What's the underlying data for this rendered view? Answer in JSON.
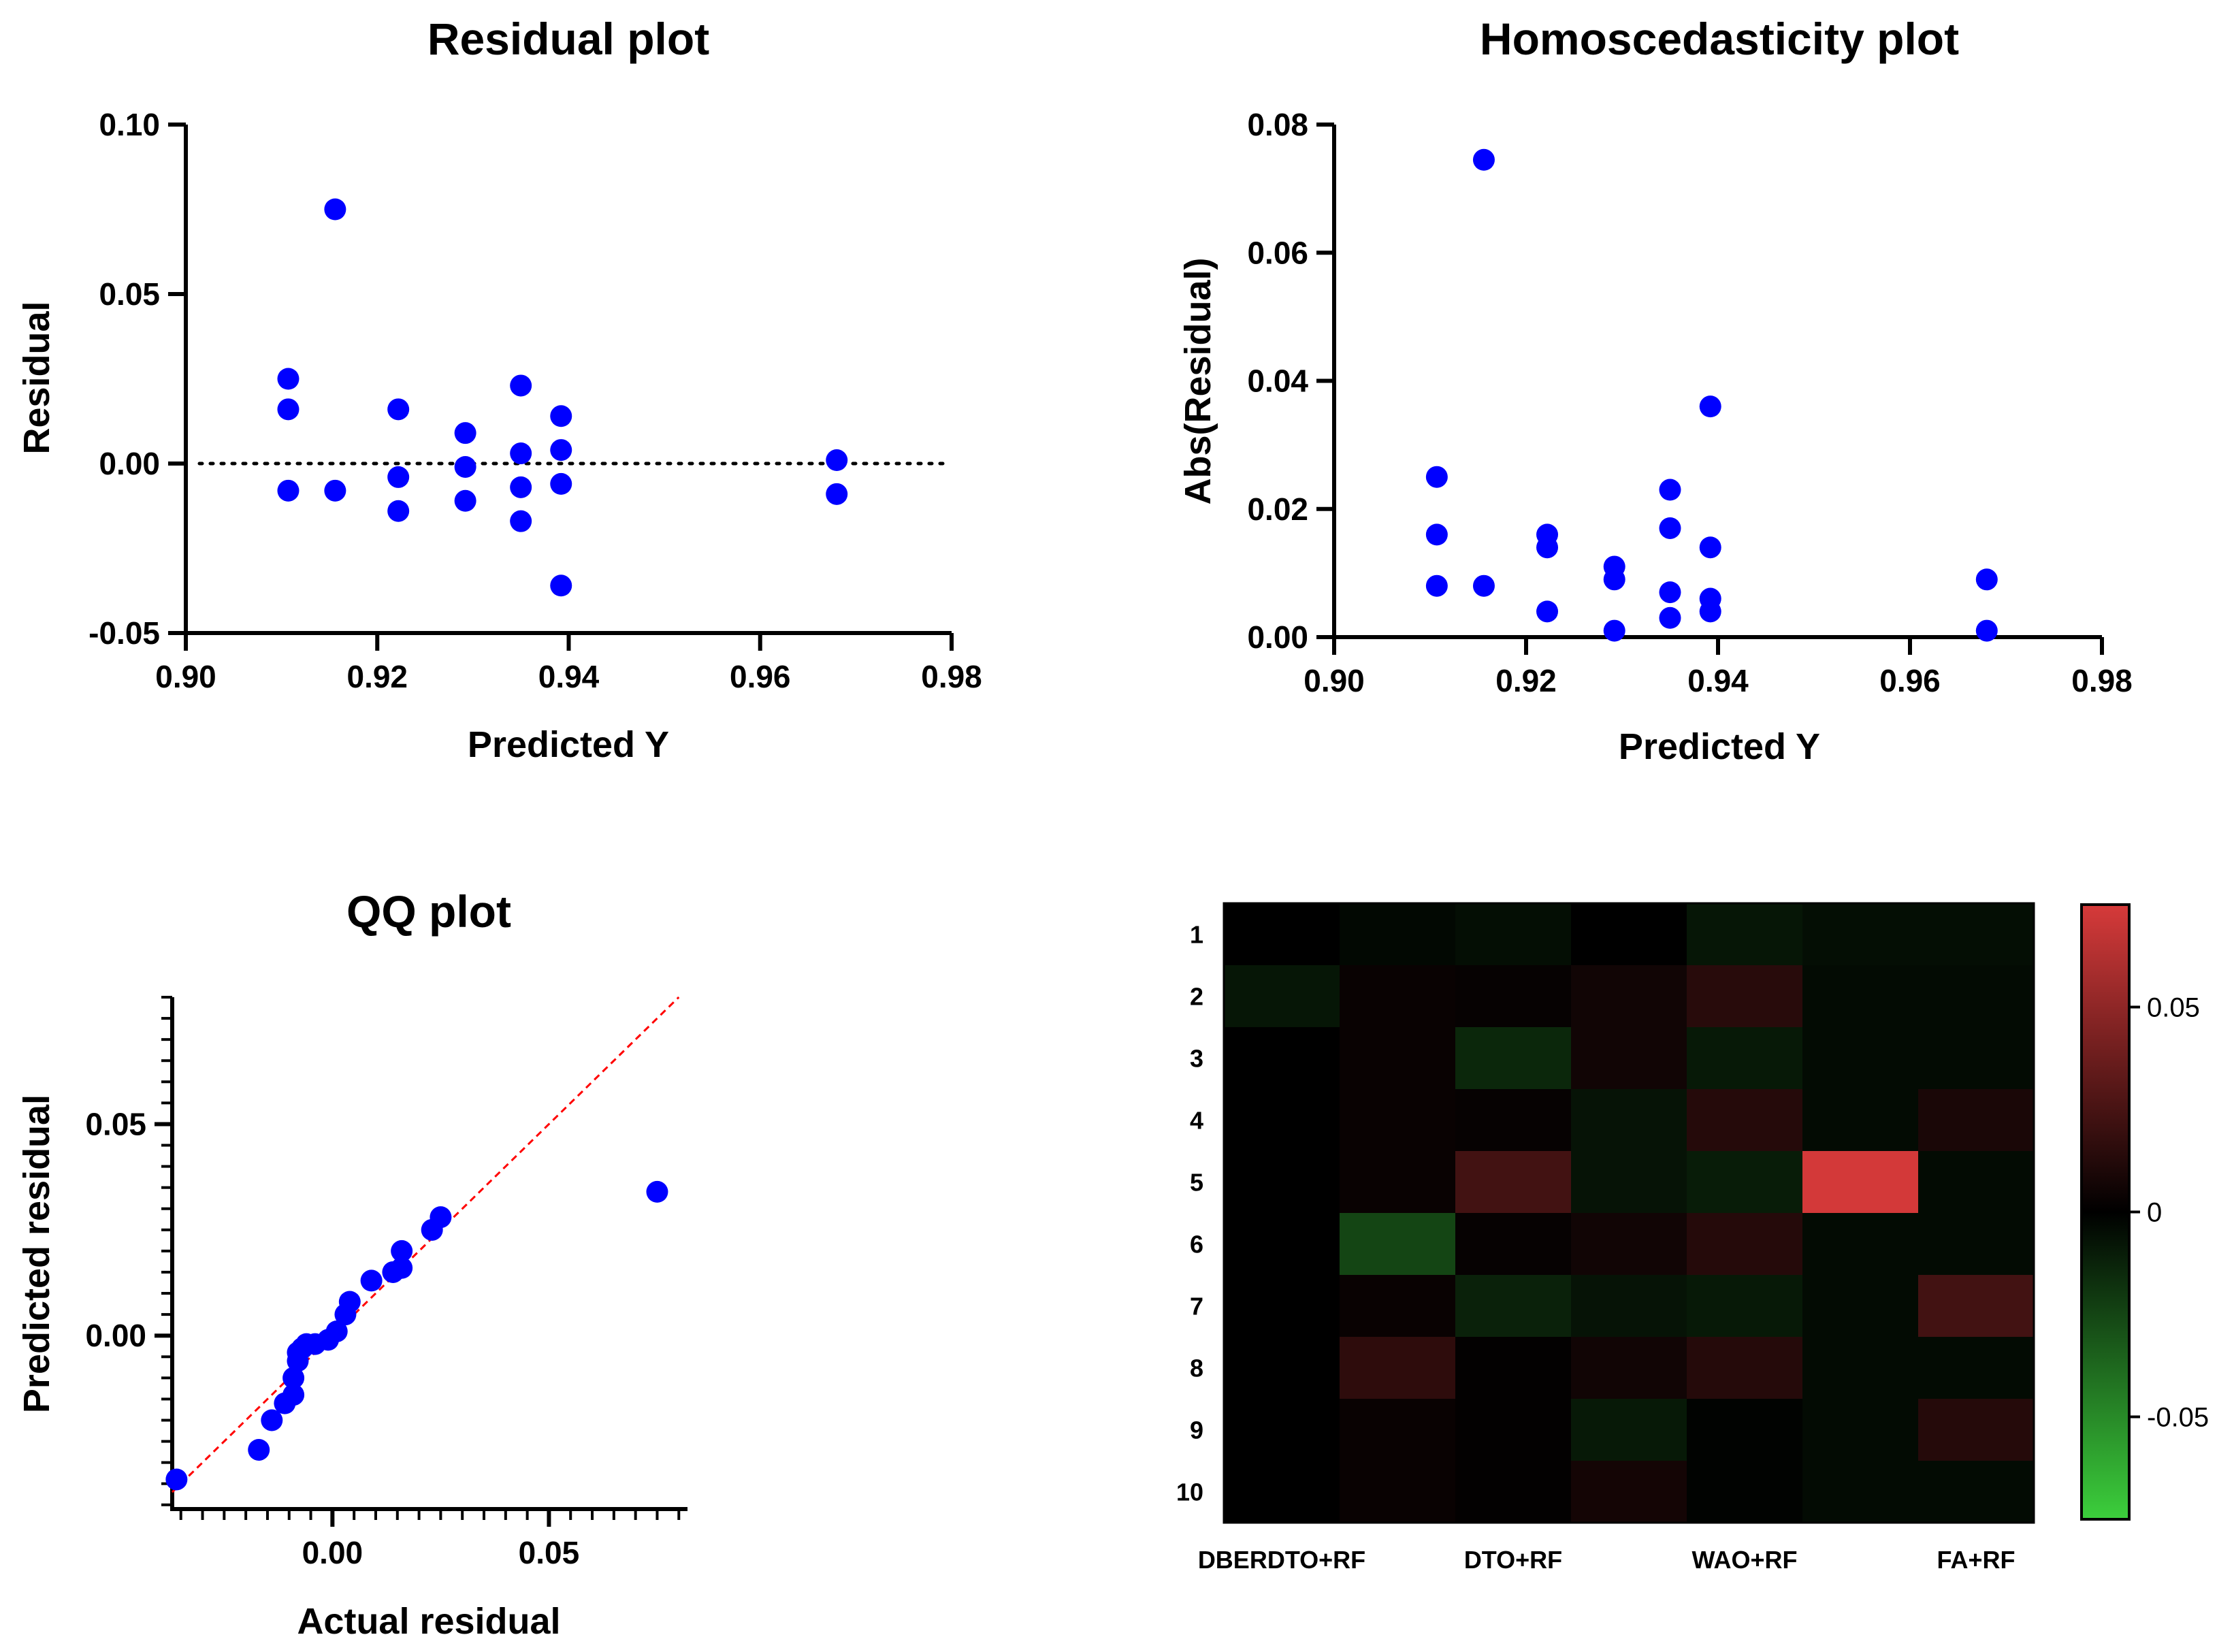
{
  "colors": {
    "point": "#0000ff",
    "axis": "#000000",
    "qq_line": "#ff0000",
    "positive": "#d63a3a",
    "zero": "#000000",
    "negative": "#3ccf3c"
  },
  "chart_data": [
    {
      "type": "scatter",
      "title": "Residual plot",
      "xlabel": "Predicted Y",
      "ylabel": "Residual",
      "xlim": [
        0.9,
        0.98
      ],
      "ylim": [
        -0.05,
        0.1
      ],
      "xticks": [
        "0.90",
        "0.92",
        "0.94",
        "0.96",
        "0.98"
      ],
      "yticks": [
        "-0.05",
        "0.00",
        "0.05",
        "0.10"
      ],
      "xtick_values": [
        0.9,
        0.92,
        0.94,
        0.96,
        0.98
      ],
      "ytick_values": [
        -0.05,
        0.0,
        0.05,
        0.1
      ],
      "reference_line": "dotted horizontal at 0",
      "series": [
        {
          "x": [
            0.9107,
            0.9107,
            0.9107,
            0.9156,
            0.9156,
            0.9222,
            0.9222,
            0.9222,
            0.9292,
            0.9292,
            0.9292,
            0.935,
            0.935,
            0.935,
            0.935,
            0.9392,
            0.9392,
            0.9392,
            0.9392,
            0.968,
            0.968
          ],
          "y": [
            0.025,
            0.016,
            -0.008,
            0.075,
            -0.008,
            0.016,
            -0.004,
            -0.014,
            0.009,
            -0.001,
            -0.011,
            0.023,
            0.003,
            -0.007,
            -0.017,
            0.014,
            0.004,
            -0.006,
            -0.036,
            0.001,
            -0.009
          ]
        }
      ]
    },
    {
      "type": "scatter",
      "title": "Homoscedasticity plot",
      "xlabel": "Predicted Y",
      "ylabel": "Abs(Residual)",
      "xlim": [
        0.9,
        0.98
      ],
      "ylim": [
        0.0,
        0.08
      ],
      "xticks": [
        "0.90",
        "0.92",
        "0.94",
        "0.96",
        "0.98"
      ],
      "yticks": [
        "0.00",
        "0.02",
        "0.04",
        "0.06",
        "0.08"
      ],
      "xtick_values": [
        0.9,
        0.92,
        0.94,
        0.96,
        0.98
      ],
      "ytick_values": [
        0.0,
        0.02,
        0.04,
        0.06,
        0.08
      ],
      "series": [
        {
          "x": [
            0.9107,
            0.9107,
            0.9107,
            0.9156,
            0.9156,
            0.9222,
            0.9222,
            0.9222,
            0.9292,
            0.9292,
            0.9292,
            0.935,
            0.935,
            0.935,
            0.935,
            0.9392,
            0.9392,
            0.9392,
            0.9392,
            0.968,
            0.968
          ],
          "y": [
            0.025,
            0.016,
            0.008,
            0.0745,
            0.008,
            0.016,
            0.014,
            0.004,
            0.011,
            0.009,
            0.001,
            0.023,
            0.017,
            0.007,
            0.003,
            0.036,
            0.014,
            0.006,
            0.004,
            0.009,
            0.001
          ]
        }
      ]
    },
    {
      "type": "scatter",
      "title": "QQ plot",
      "xlabel": "Actual residual",
      "ylabel": "Predicted residual",
      "xlim": [
        -0.037,
        0.082
      ],
      "ylim": [
        -0.041,
        0.08
      ],
      "xticks": [
        "0.00",
        "0.05"
      ],
      "yticks": [
        "0.00",
        "0.05"
      ],
      "xtick_values": [
        0.0,
        0.05
      ],
      "ytick_values": [
        0.0,
        0.05
      ],
      "x_minor_step": 0.005,
      "y_minor_step": 0.005,
      "reference_line": "dashed red identity line y = x",
      "series": [
        {
          "x": [
            -0.036,
            -0.017,
            -0.014,
            -0.011,
            -0.009,
            -0.009,
            -0.008,
            -0.008,
            -0.007,
            -0.006,
            -0.004,
            -0.001,
            0.001,
            0.003,
            0.004,
            0.009,
            0.014,
            0.016,
            0.016,
            0.023,
            0.025,
            0.075
          ],
          "y": [
            -0.034,
            -0.027,
            -0.02,
            -0.016,
            -0.014,
            -0.01,
            -0.006,
            -0.004,
            -0.003,
            -0.002,
            -0.002,
            -0.001,
            0.001,
            0.005,
            0.008,
            0.013,
            0.015,
            0.016,
            0.02,
            0.025,
            0.028,
            0.034
          ]
        }
      ]
    },
    {
      "type": "heatmap",
      "title": "",
      "rows": [
        "1",
        "2",
        "3",
        "4",
        "5",
        "6",
        "7",
        "8",
        "9",
        "10"
      ],
      "columns": [
        "DBERDTO+RF",
        "",
        "DTO+RF",
        "",
        "WAO+RF",
        "",
        "FA+RF"
      ],
      "colorbar_ticks": [
        "0.05",
        "0",
        "-0.05"
      ],
      "colorbar_tick_values": [
        0.05,
        0,
        -0.05
      ],
      "color_range": [
        -0.075,
        0.075
      ],
      "values": [
        [
          0.0,
          -0.003,
          -0.005,
          0.0,
          -0.008,
          -0.005,
          -0.005
        ],
        [
          -0.008,
          0.003,
          0.002,
          0.006,
          0.014,
          -0.004,
          -0.004
        ],
        [
          0.0,
          0.003,
          -0.014,
          0.006,
          -0.009,
          -0.004,
          -0.004
        ],
        [
          0.0,
          0.003,
          0.002,
          -0.007,
          0.013,
          -0.004,
          0.009
        ],
        [
          0.0,
          0.003,
          0.023,
          -0.007,
          -0.01,
          0.074,
          -0.004
        ],
        [
          0.0,
          -0.025,
          0.002,
          0.006,
          0.013,
          -0.004,
          -0.004
        ],
        [
          0.0,
          0.003,
          -0.012,
          -0.007,
          -0.009,
          -0.004,
          0.023
        ],
        [
          0.0,
          0.016,
          0.001,
          0.006,
          0.013,
          -0.004,
          -0.004
        ],
        [
          0.0,
          0.003,
          0.001,
          -0.009,
          -0.001,
          -0.004,
          0.013
        ],
        [
          0.0,
          0.003,
          0.001,
          0.007,
          -0.001,
          -0.004,
          -0.004
        ]
      ]
    }
  ]
}
